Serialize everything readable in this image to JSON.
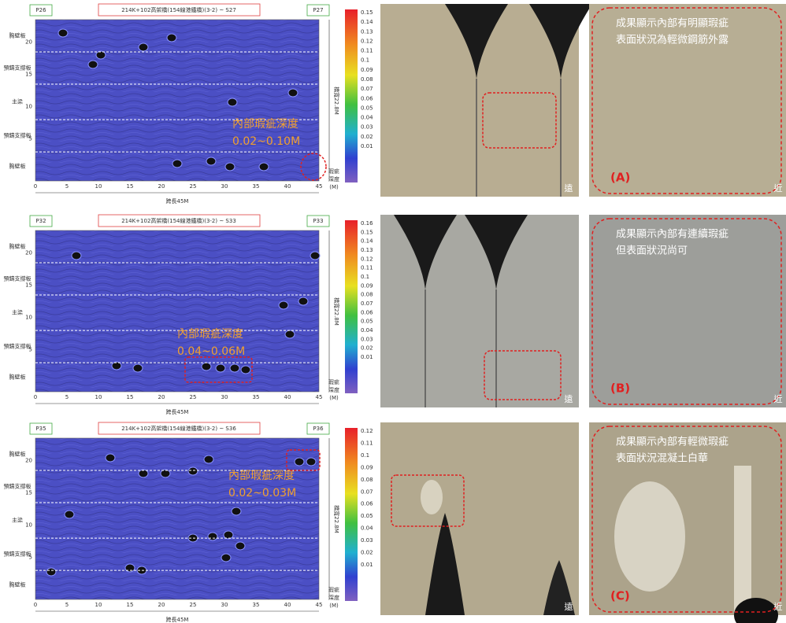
{
  "rows": [
    {
      "left_label": "P26",
      "title": "214K+102高架橋(154線港鐵橋)(3-2) ~ S27",
      "right_label": "P27",
      "y_labels": [
        "胸壁板",
        "預鑄支撐板",
        "主梁",
        "預鑄支撐板",
        "胸壁板"
      ],
      "y_ticks": [
        "20",
        "15",
        "10",
        "5"
      ],
      "x_ticks": [
        "0",
        "5",
        "10",
        "15",
        "20",
        "25",
        "30",
        "35",
        "40",
        "45"
      ],
      "x_label": "跨長45M",
      "width_label": "橋寬22.8M",
      "colorbar_ticks": [
        "0.15",
        "0.14",
        "0.13",
        "0.12",
        "0.11",
        "0.1",
        "0.09",
        "0.08",
        "0.07",
        "0.06",
        "0.05",
        "0.04",
        "0.03",
        "0.02",
        "0.01"
      ],
      "colorbar_label": [
        "瑕疵",
        "深度",
        "(M)"
      ],
      "annotation": [
        "內部瑕疵深度",
        "0.02~0.10M"
      ],
      "photo_corner": "遠",
      "zoom_text": [
        "成果顯示內部有明顯瑕疵",
        "表面狀況為輕微鋼筋外露"
      ],
      "zoom_tag": "(A)",
      "zoom_corner": "近"
    },
    {
      "left_label": "P32",
      "title": "214K+102高架橋(154線港鐵橋)(3-2) ~ S33",
      "right_label": "P33",
      "y_labels": [
        "胸壁板",
        "預鑄支撐板",
        "主梁",
        "預鑄支撐板",
        "胸壁板"
      ],
      "y_ticks": [
        "20",
        "15",
        "10",
        "5"
      ],
      "x_ticks": [
        "0",
        "5",
        "10",
        "15",
        "20",
        "25",
        "30",
        "35",
        "40",
        "45"
      ],
      "x_label": "跨長45M",
      "width_label": "橋寬22.8M",
      "colorbar_ticks": [
        "0.16",
        "0.15",
        "0.14",
        "0.13",
        "0.12",
        "0.11",
        "0.1",
        "0.09",
        "0.08",
        "0.07",
        "0.06",
        "0.05",
        "0.04",
        "0.03",
        "0.02",
        "0.01"
      ],
      "colorbar_label": [
        "瑕疵",
        "深度",
        "(M)"
      ],
      "annotation": [
        "內部瑕疵深度",
        "0.04~0.06M"
      ],
      "photo_corner": "遠",
      "zoom_text": [
        "成果顯示內部有連續瑕疵",
        "但表面狀況尚可"
      ],
      "zoom_tag": "(B)",
      "zoom_corner": "近"
    },
    {
      "left_label": "P35",
      "title": "214K+102高架橋(154線港鐵橋)(3-2) ~ S36",
      "right_label": "P36",
      "y_labels": [
        "胸壁板",
        "預鑄支撐板",
        "主梁",
        "預鑄支撐板",
        "胸壁板"
      ],
      "y_ticks": [
        "20",
        "15",
        "10",
        "5"
      ],
      "x_ticks": [
        "0",
        "5",
        "10",
        "15",
        "20",
        "25",
        "30",
        "35",
        "40",
        "45"
      ],
      "x_label": "跨長45M",
      "width_label": "橋寬22.8M",
      "colorbar_ticks": [
        "0.12",
        "0.11",
        "0.1",
        "0.09",
        "0.08",
        "0.07",
        "0.06",
        "0.05",
        "0.04",
        "0.03",
        "0.02",
        "0.01"
      ],
      "colorbar_label": [
        "瑕疵",
        "深度",
        "(M)"
      ],
      "annotation": [
        "內部瑕疵深度",
        "0.02~0.03M"
      ],
      "photo_corner": "遠",
      "zoom_text": [
        "成果顯示內部有輕微瑕疵",
        "表面狀況混凝土白華"
      ],
      "zoom_tag": "(C)",
      "zoom_corner": "近"
    }
  ]
}
